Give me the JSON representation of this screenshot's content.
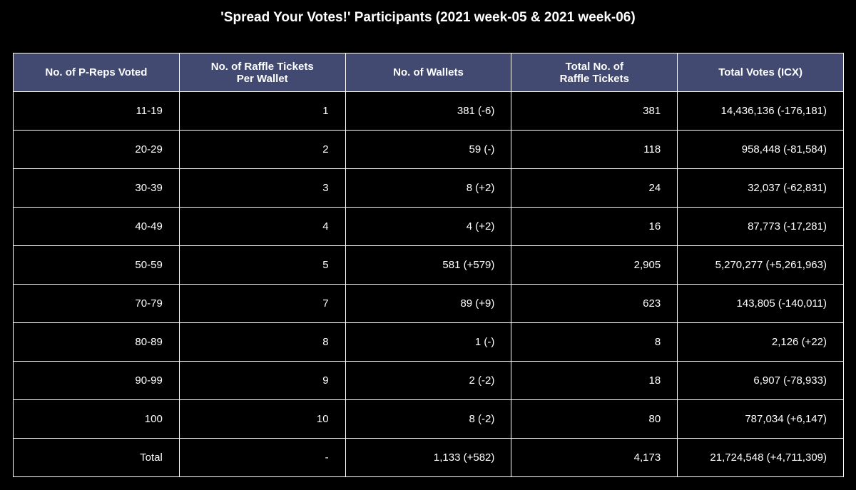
{
  "chart_data": {
    "type": "table",
    "title": "'Spread Your Votes!' Participants (2021 week-05 & 2021 week-06)",
    "columns": [
      "No. of P-Reps Voted",
      "No. of Raffle Tickets\nPer Wallet",
      "No. of Wallets",
      "Total No. of\nRaffle Tickets",
      "Total Votes (ICX)"
    ],
    "rows": [
      [
        "11-19",
        "1",
        "381 (-6)",
        "381",
        "14,436,136 (-176,181)"
      ],
      [
        "20-29",
        "2",
        "59 (-)",
        "118",
        "958,448 (-81,584)"
      ],
      [
        "30-39",
        "3",
        "8 (+2)",
        "24",
        "32,037 (-62,831)"
      ],
      [
        "40-49",
        "4",
        "4 (+2)",
        "16",
        "87,773 (-17,281)"
      ],
      [
        "50-59",
        "5",
        "581 (+579)",
        "2,905",
        "5,270,277 (+5,261,963)"
      ],
      [
        "70-79",
        "7",
        "89 (+9)",
        "623",
        "143,805 (-140,011)"
      ],
      [
        "80-89",
        "8",
        "1 (-)",
        "8",
        "2,126 (+22)"
      ],
      [
        "90-99",
        "9",
        "2 (-2)",
        "18",
        "6,907 (-78,933)"
      ],
      [
        "100",
        "10",
        "8 (-2)",
        "80",
        "787,034 (+6,147)"
      ],
      [
        "Total",
        "-",
        "1,133 (+582)",
        "4,173",
        "21,724,548 (+4,711,309)"
      ]
    ],
    "colors": {
      "header_background": "#424a72",
      "cell_background": "#000000",
      "border": "#ffffff",
      "text": "#ffffff"
    }
  }
}
